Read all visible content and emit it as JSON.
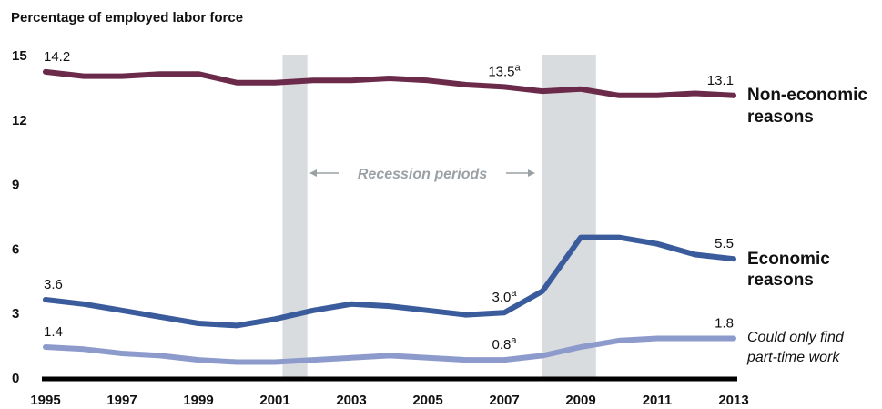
{
  "chart_data": {
    "type": "line",
    "title": "Percentage of employed labor force",
    "x": [
      1995,
      1996,
      1997,
      1998,
      1999,
      2000,
      2001,
      2002,
      2003,
      2004,
      2005,
      2006,
      2007,
      2008,
      2009,
      2010,
      2011,
      2012,
      2013
    ],
    "xticks": [
      "1995",
      "1997",
      "1999",
      "2001",
      "2003",
      "2005",
      "2007",
      "2009",
      "2011",
      "2013"
    ],
    "yticks": [
      "0",
      "3",
      "6",
      "9",
      "12",
      "15"
    ],
    "xlim": [
      1995,
      2013
    ],
    "ylim": [
      0,
      15
    ],
    "grid": false,
    "recession_periods": [
      [
        2001.2,
        2001.85
      ],
      [
        2008.0,
        2009.4
      ]
    ],
    "annotation": "Recession periods",
    "series": [
      {
        "name": "Non-economic reasons",
        "name_lines": [
          "Non-economic",
          "reasons"
        ],
        "color": "#6b2a4a",
        "values": [
          14.2,
          14.0,
          14.0,
          14.1,
          14.1,
          13.7,
          13.7,
          13.8,
          13.8,
          13.9,
          13.8,
          13.6,
          13.5,
          13.3,
          13.4,
          13.1,
          13.1,
          13.2,
          13.1
        ],
        "labels": [
          {
            "x": 1995,
            "text": "14.2"
          },
          {
            "x": 2007,
            "text": "13.5",
            "sup": "a"
          },
          {
            "x": 2013,
            "text": "13.1"
          }
        ]
      },
      {
        "name": "Economic reasons",
        "name_lines": [
          "Economic",
          "reasons"
        ],
        "color": "#3a5b9c",
        "values": [
          3.6,
          3.4,
          3.1,
          2.8,
          2.5,
          2.4,
          2.7,
          3.1,
          3.4,
          3.3,
          3.1,
          2.9,
          3.0,
          4.0,
          6.5,
          6.5,
          6.2,
          5.7,
          5.5
        ],
        "labels": [
          {
            "x": 1995,
            "text": "3.6"
          },
          {
            "x": 2007,
            "text": "3.0",
            "sup": "a"
          },
          {
            "x": 2013,
            "text": "5.5"
          }
        ]
      },
      {
        "name": "Could only find part-time work",
        "name_lines": [
          "Could only find",
          "part-time work"
        ],
        "color": "#8d9bcc",
        "values": [
          1.4,
          1.3,
          1.1,
          1.0,
          0.8,
          0.7,
          0.7,
          0.8,
          0.9,
          1.0,
          0.9,
          0.8,
          0.8,
          1.0,
          1.4,
          1.7,
          1.8,
          1.8,
          1.8
        ],
        "labels": [
          {
            "x": 1995,
            "text": "1.4"
          },
          {
            "x": 2007,
            "text": "0.8",
            "sup": "a"
          },
          {
            "x": 2013,
            "text": "1.8"
          }
        ]
      }
    ]
  }
}
